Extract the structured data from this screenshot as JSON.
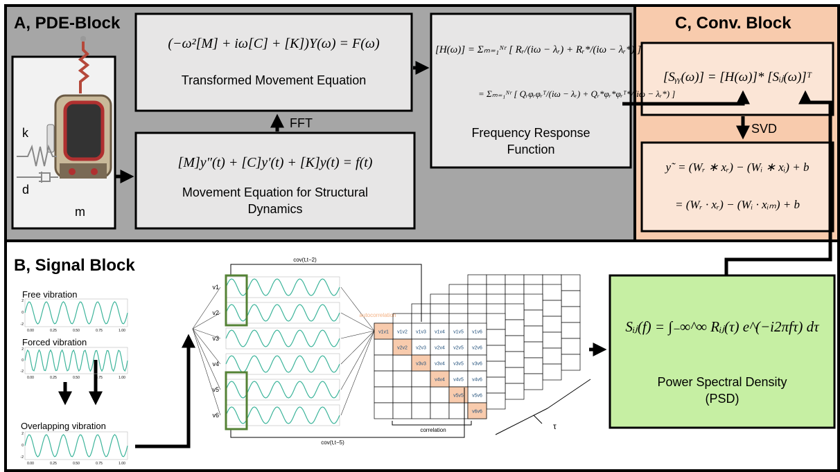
{
  "panels": {
    "pde": "A, PDE-Block",
    "signal": "B, Signal Block",
    "conv": "C, Conv. Block"
  },
  "pde": {
    "transformed_equation": "(−ω²[M] + iω[C] + [K])Y(ω) = F(ω)",
    "transformed_label": "Transformed Movement Equation",
    "fft": "FFT",
    "movement_equation": "[M]y″(t) + [C]y′(t) + [K]y(t) = f(t)",
    "movement_label": "Movement Equation for Structural Dynamics",
    "frf_equation_1": "[H(ω)] = Σₘ₌₁ᴺʳ [ Rᵣ/(iω − λᵣ) + Rᵣ*/(iω − λᵣ*) ]",
    "frf_equation_2": "= Σₘ₌₁ᴺʳ [ Qᵣφᵣφᵣᵀ/(iω − λᵣ) + Qᵣ*φᵣ*φᵣᵀ*/(iω − λᵣ*) ]",
    "frf_label": "Frequency Response Function",
    "k": "k",
    "d": "d",
    "m": "m"
  },
  "conv": {
    "equation": "[Sᵧᵧ(ω)] = [H(ω)]* [Sᵢⱼ(ω)]ᵀ",
    "svd": "SVD",
    "output_equation_1": "y˜ = (Wᵣ ∗ xᵣ) − (Wᵢ ∗ xᵢ) + b",
    "output_equation_2": "= (Wᵣ · xᵣ) − (Wᵢ · xᵢₘ) + b"
  },
  "signal": {
    "free": "Free vibration",
    "forced": "Forced vibration",
    "overlapping": "Overlapping vibration",
    "xticks": [
      "0.00",
      "0.25",
      "0.50",
      "0.75",
      "1.00"
    ],
    "yticks": [
      "2",
      "0",
      "-2"
    ],
    "channels": [
      "v1",
      "v2",
      "v3",
      "v4",
      "v5",
      "v6"
    ],
    "matrix": [
      [
        "v1v1",
        "v1v2",
        "v1v3",
        "v1v4",
        "v1v5",
        "v1v6"
      ],
      [
        "v2v2",
        "v2v3",
        "v2v4",
        "v2v5",
        "v2v6"
      ],
      [
        "v3v3",
        "v3v4",
        "v3v5",
        "v3v6"
      ],
      [
        "v4v4",
        "v4v5",
        "v4v6"
      ],
      [
        "v5v5",
        "v5v6"
      ],
      [
        "v6v6"
      ]
    ],
    "autocorrelation": "autocorrelation",
    "correlation": "correlation",
    "cov_top": "cov(t,t−2)",
    "cov_bottom": "cov(t,t−5)",
    "tau": "τ",
    "psd_equation": "Sᵢⱼ(f) = ∫₋∞^∞ Rᵢⱼ(τ) e^(−i2πfτ) dτ",
    "psd_label": "Power Spectral Density (PSD)"
  }
}
